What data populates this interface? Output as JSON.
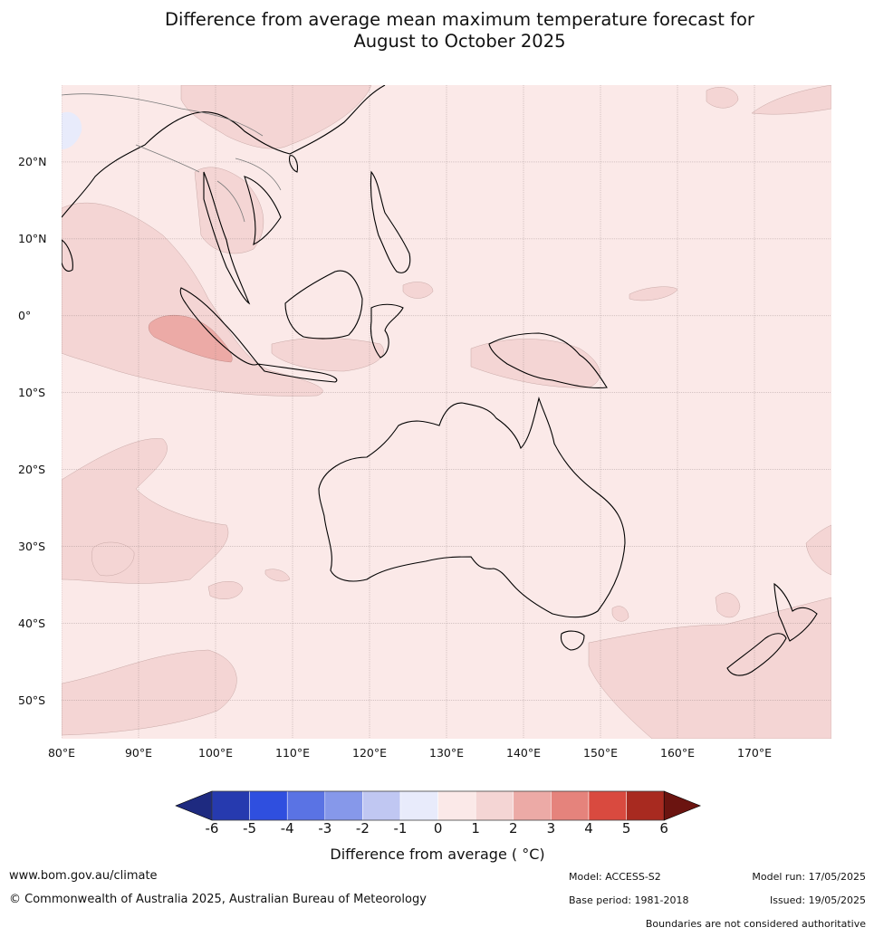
{
  "title_line1": "Difference from average mean maximum temperature forecast for",
  "title_line2": "August to October 2025",
  "map": {
    "projection": "equirectangular",
    "lon_range_deg": [
      80,
      180
    ],
    "lat_range_deg": [
      -55,
      30
    ],
    "lat_labels": [
      {
        "lat": 20,
        "label": "20°N"
      },
      {
        "lat": 10,
        "label": "10°N"
      },
      {
        "lat": 0,
        "label": "0°"
      },
      {
        "lat": -10,
        "label": "10°S"
      },
      {
        "lat": -20,
        "label": "20°S"
      },
      {
        "lat": -30,
        "label": "30°S"
      },
      {
        "lat": -40,
        "label": "40°S"
      },
      {
        "lat": -50,
        "label": "50°S"
      }
    ],
    "lon_labels": [
      {
        "lon": 80,
        "label": "80°E"
      },
      {
        "lon": 90,
        "label": "90°E"
      },
      {
        "lon": 100,
        "label": "100°E"
      },
      {
        "lon": 110,
        "label": "110°E"
      },
      {
        "lon": 120,
        "label": "120°E"
      },
      {
        "lon": 130,
        "label": "130°E"
      },
      {
        "lon": 140,
        "label": "140°E"
      },
      {
        "lon": 150,
        "label": "150°E"
      },
      {
        "lon": 160,
        "label": "160°E"
      },
      {
        "lon": 170,
        "label": "170°E"
      }
    ],
    "background_class_color": "#fbe9e8",
    "anomaly_1_2_color": "#f4d5d4",
    "anomaly_2_3_color": "#ecaaa6"
  },
  "colorbar": {
    "ticks": [
      "-6",
      "-5",
      "-4",
      "-3",
      "-2",
      "-1",
      "0",
      "1",
      "2",
      "3",
      "4",
      "5",
      "6"
    ],
    "colors": [
      "#1e2a80",
      "#263aaf",
      "#2f4fdf",
      "#5a73e4",
      "#8698ea",
      "#c0c7f2",
      "#e8ebfb",
      "#fbe9e8",
      "#f4d5d4",
      "#ecaaa6",
      "#e5837c",
      "#d94a3f",
      "#a82a20",
      "#6b1410"
    ],
    "label": "Difference from average ( °C)"
  },
  "footer": {
    "website": "www.bom.gov.au/climate",
    "copyright": "© Commonwealth of Australia 2025, Australian Bureau of Meteorology",
    "model": "Model: ACCESS-S2",
    "model_run": "Model run: 17/05/2025",
    "base_period": "Base period: 1981-2018",
    "issued": "Issued: 19/05/2025",
    "disclaimer": "Boundaries are not considered authoritative"
  }
}
